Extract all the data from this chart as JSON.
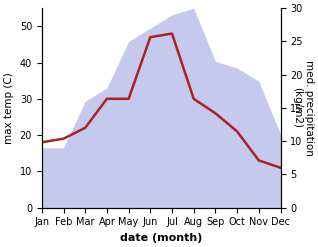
{
  "months": [
    "Jan",
    "Feb",
    "Mar",
    "Apr",
    "May",
    "Jun",
    "Jul",
    "Aug",
    "Sep",
    "Oct",
    "Nov",
    "Dec"
  ],
  "temp": [
    18,
    19,
    22,
    30,
    30,
    47,
    48,
    30,
    26,
    21,
    13,
    11
  ],
  "precip": [
    9,
    9,
    16,
    18,
    25,
    27,
    29,
    30,
    22,
    21,
    19,
    11
  ],
  "temp_color": "#aa2222",
  "precip_color": "#b0b8e8",
  "precip_alpha": 0.75,
  "xlabel": "date (month)",
  "ylabel_left": "max temp (C)",
  "ylabel_right": "med. precipitation\n(kg/m2)",
  "ylim_left": [
    0,
    55
  ],
  "ylim_right": [
    0,
    30
  ],
  "yticks_left": [
    0,
    10,
    20,
    30,
    40,
    50
  ],
  "yticks_right": [
    0,
    5,
    10,
    15,
    20,
    25,
    30
  ],
  "background_color": "#ffffff",
  "xlabel_fontsize": 8,
  "ylabel_fontsize": 7.5,
  "tick_fontsize": 7
}
